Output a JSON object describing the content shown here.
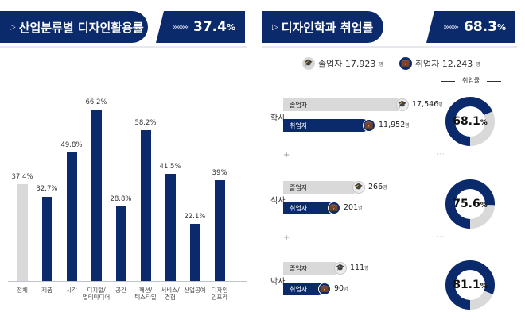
{
  "left": {
    "title": "산업분류별 디자인활용률",
    "rate": "37.4",
    "rate_unit": "%"
  },
  "right": {
    "title": "디자인학과 취업률",
    "rate": "68.3",
    "rate_unit": "%",
    "legend": {
      "graduates": "졸업자 17,923",
      "graduates_unit": "명",
      "employed": "취업자 12,243",
      "employed_unit": "명"
    },
    "employment_rate_header": "취업률",
    "degrees": [
      {
        "name": "학사",
        "grad_label": "졸업자",
        "grad_value": "17,546",
        "emp_label": "취업자",
        "emp_value": "11,952",
        "unit": "명",
        "rate": "68.1",
        "rate_unit": "%",
        "rate_fraction": 0.681
      },
      {
        "name": "석사",
        "grad_label": "졸업자",
        "grad_value": "266",
        "emp_label": "취업자",
        "emp_value": "201",
        "unit": "명",
        "rate": "75.6",
        "rate_unit": "%",
        "rate_fraction": 0.756
      },
      {
        "name": "박사",
        "grad_label": "졸업자",
        "grad_value": "111",
        "emp_label": "취업자",
        "emp_value": "90",
        "unit": "명",
        "rate": "81.1",
        "rate_unit": "%",
        "rate_fraction": 0.811
      }
    ]
  },
  "colors": {
    "navy": "#0b2a6b",
    "gray_bar": "#d9d9d9"
  },
  "chart_data": {
    "type": "bar",
    "title": "산업분류별 디자인활용률",
    "categories": [
      "전체",
      "제품",
      "시각",
      "디지털/멀티미디어",
      "공간",
      "패션/텍스타일",
      "서비스/경험",
      "산업공예",
      "디자인인프라"
    ],
    "category_lines": [
      [
        "전체"
      ],
      [
        "제품"
      ],
      [
        "시각"
      ],
      [
        "디지털/",
        "멀티미디어"
      ],
      [
        "공간"
      ],
      [
        "패션/",
        "텍스타일"
      ],
      [
        "서비스/",
        "경험"
      ],
      [
        "산업공예"
      ],
      [
        "디자인",
        "인프라"
      ]
    ],
    "values": [
      37.4,
      32.7,
      49.8,
      66.2,
      28.8,
      58.2,
      41.5,
      22.1,
      39
    ],
    "value_labels": [
      "37.4%",
      "32.7%",
      "49.8%",
      "66.2%",
      "28.8%",
      "58.2%",
      "41.5%",
      "22.1%",
      "39%"
    ],
    "highlight_first": true,
    "ylim": [
      0,
      70
    ]
  }
}
